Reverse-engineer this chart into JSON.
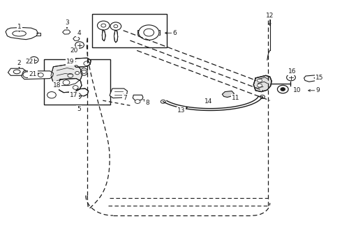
{
  "bg_color": "#ffffff",
  "line_color": "#1a1a1a",
  "parts": {
    "1": {
      "label": [
        0.055,
        0.895
      ],
      "arrow_to": [
        0.055,
        0.865
      ]
    },
    "2": {
      "label": [
        0.055,
        0.75
      ],
      "arrow_to": [
        0.055,
        0.72
      ]
    },
    "3": {
      "label": [
        0.195,
        0.91
      ],
      "arrow_to": [
        0.195,
        0.878
      ]
    },
    "4": {
      "label": [
        0.23,
        0.87
      ],
      "arrow_to": [
        0.228,
        0.848
      ]
    },
    "5": {
      "label": [
        0.23,
        0.565
      ],
      "arrow_to": [
        0.23,
        0.585
      ]
    },
    "6": {
      "label": [
        0.51,
        0.87
      ],
      "arrow_to": [
        0.475,
        0.87
      ]
    },
    "7": {
      "label": [
        0.365,
        0.61
      ],
      "arrow_to": [
        0.358,
        0.635
      ]
    },
    "8": {
      "label": [
        0.43,
        0.59
      ],
      "arrow_to": [
        0.415,
        0.612
      ]
    },
    "9": {
      "label": [
        0.93,
        0.64
      ],
      "arrow_to": [
        0.895,
        0.64
      ]
    },
    "10": {
      "label": [
        0.87,
        0.64
      ],
      "arrow_to": [
        0.855,
        0.64
      ]
    },
    "11": {
      "label": [
        0.69,
        0.61
      ],
      "arrow_to": [
        0.672,
        0.628
      ]
    },
    "12": {
      "label": [
        0.79,
        0.94
      ],
      "arrow_to": [
        0.79,
        0.89
      ]
    },
    "13": {
      "label": [
        0.53,
        0.56
      ],
      "arrow_to": [
        0.555,
        0.578
      ]
    },
    "14": {
      "label": [
        0.61,
        0.595
      ],
      "arrow_to": [
        0.593,
        0.612
      ]
    },
    "15": {
      "label": [
        0.935,
        0.69
      ],
      "arrow_to": [
        0.912,
        0.69
      ]
    },
    "16": {
      "label": [
        0.855,
        0.715
      ],
      "arrow_to": [
        0.84,
        0.7
      ]
    },
    "17": {
      "label": [
        0.215,
        0.62
      ],
      "arrow_to": [
        0.225,
        0.635
      ]
    },
    "18": {
      "label": [
        0.165,
        0.66
      ],
      "arrow_to": [
        0.185,
        0.665
      ]
    },
    "19": {
      "label": [
        0.205,
        0.755
      ],
      "arrow_to": [
        0.228,
        0.755
      ]
    },
    "20": {
      "label": [
        0.215,
        0.8
      ],
      "arrow_to": [
        0.22,
        0.818
      ]
    },
    "21": {
      "label": [
        0.095,
        0.705
      ],
      "arrow_to": [
        0.12,
        0.71
      ]
    },
    "22": {
      "label": [
        0.085,
        0.755
      ],
      "arrow_to": [
        0.095,
        0.77
      ]
    }
  }
}
